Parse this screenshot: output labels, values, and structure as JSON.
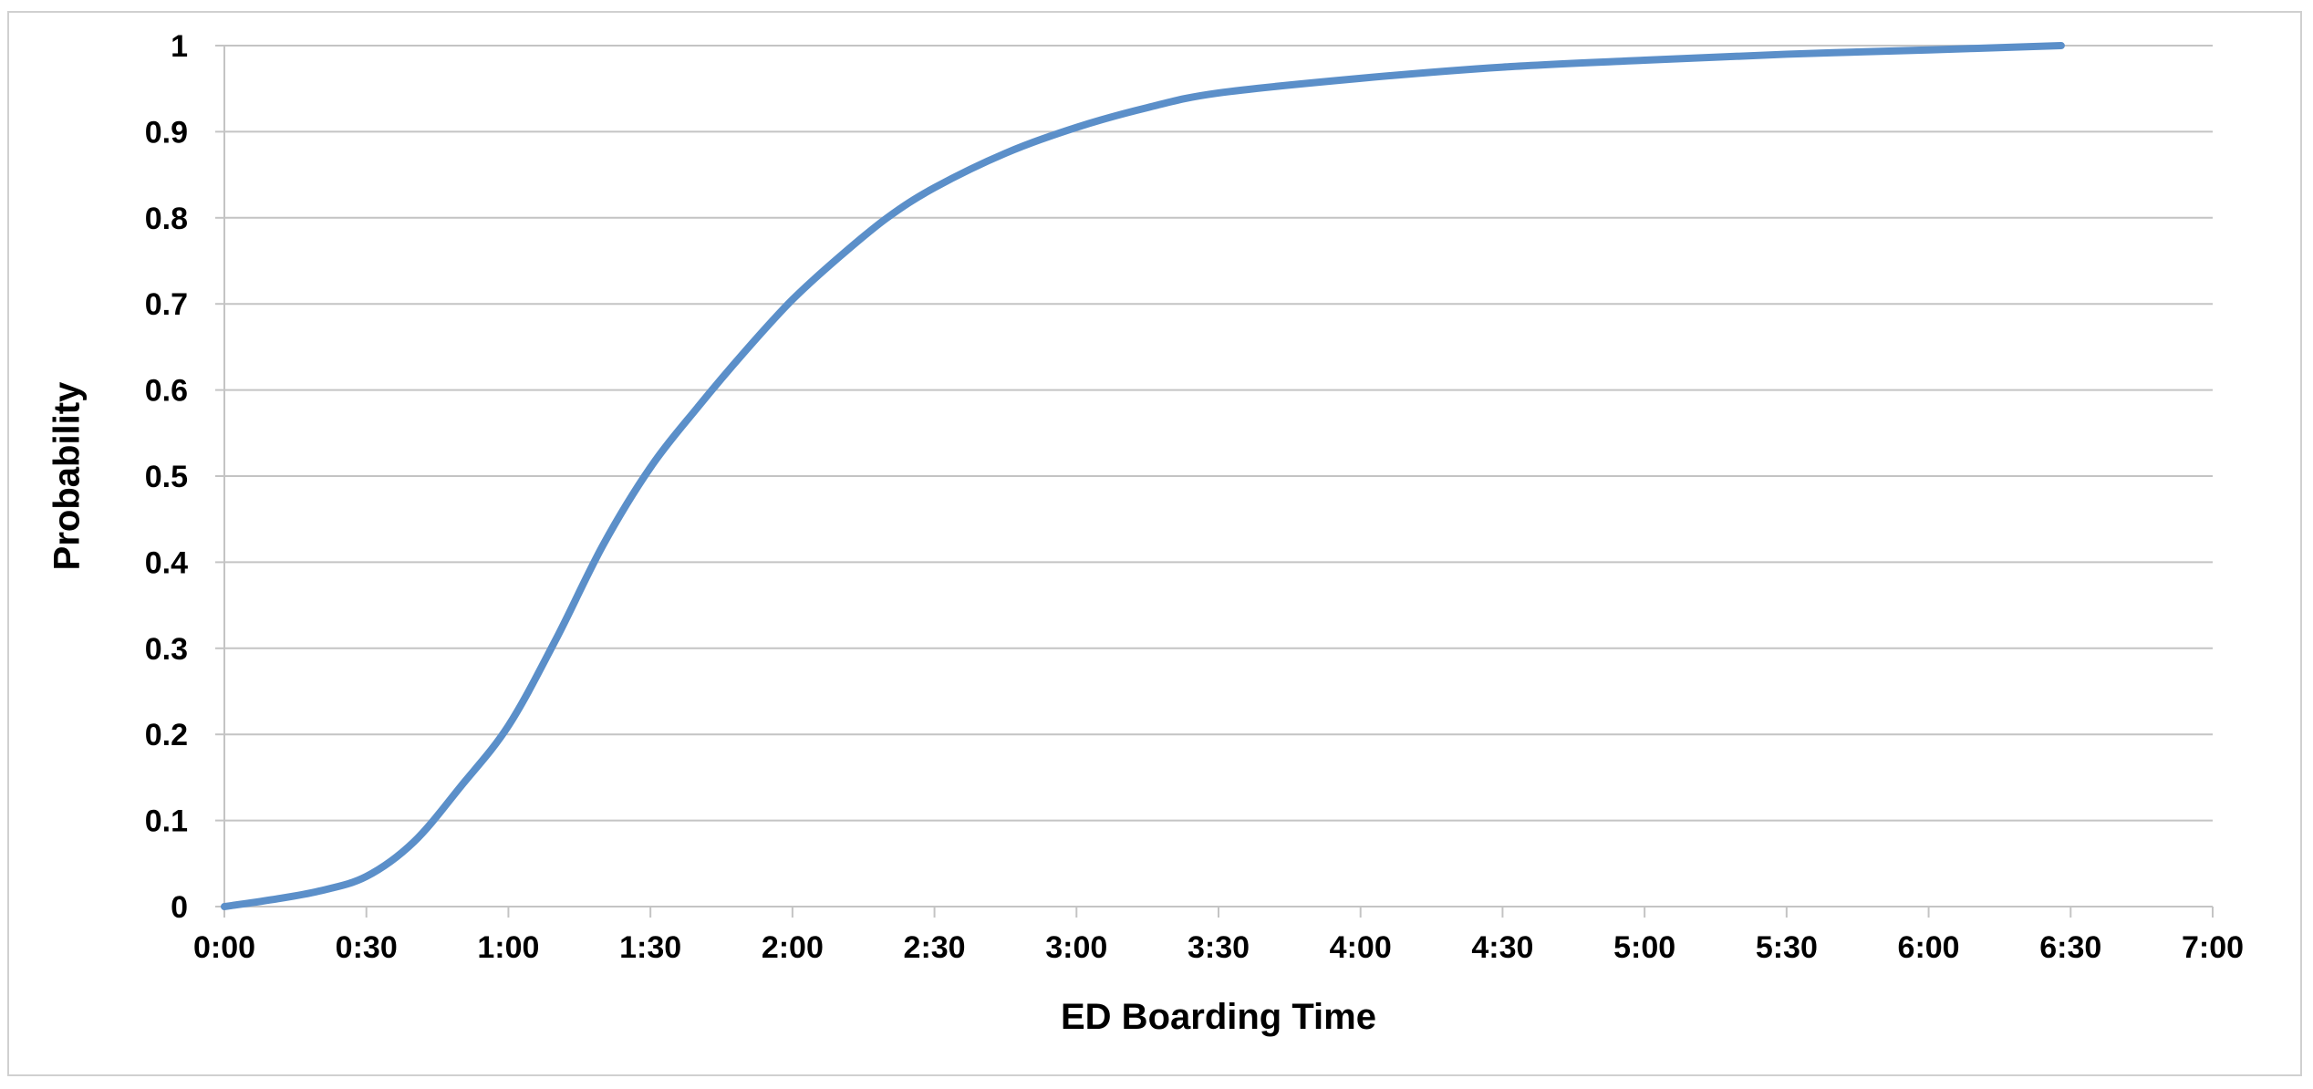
{
  "chart_data": {
    "type": "line",
    "title": "",
    "xlabel": "ED Boarding Time",
    "ylabel": "Probability",
    "x_ticks": [
      "0:00",
      "0:30",
      "1:00",
      "1:30",
      "2:00",
      "2:30",
      "3:00",
      "3:30",
      "4:00",
      "4:30",
      "5:00",
      "5:30",
      "6:00",
      "6:30",
      "7:00"
    ],
    "y_ticks": [
      "0",
      "0.1",
      "0.2",
      "0.3",
      "0.4",
      "0.5",
      "0.6",
      "0.7",
      "0.8",
      "0.9",
      "1"
    ],
    "xlim": [
      "0:00",
      "7:00"
    ],
    "ylim": [
      0,
      1
    ],
    "grid": "horizontal",
    "legend": "none",
    "line_color": "#5b8fc9",
    "grid_color": "#c4c4c4",
    "series": [
      {
        "x": [
          "0:00",
          "0:10",
          "0:20",
          "0:30",
          "0:40",
          "0:50",
          "1:00",
          "1:10",
          "1:20",
          "1:30",
          "1:40",
          "1:50",
          "2:00",
          "2:10",
          "2:20",
          "2:30",
          "2:45",
          "3:00",
          "3:15",
          "3:30",
          "4:00",
          "4:30",
          "5:00",
          "5:30",
          "6:00",
          "6:28"
        ],
        "values": [
          0.0,
          0.008,
          0.018,
          0.035,
          0.075,
          0.14,
          0.21,
          0.31,
          0.42,
          0.51,
          0.58,
          0.645,
          0.705,
          0.755,
          0.8,
          0.835,
          0.875,
          0.905,
          0.928,
          0.945,
          0.962,
          0.975,
          0.983,
          0.99,
          0.995,
          1.0
        ]
      }
    ]
  }
}
